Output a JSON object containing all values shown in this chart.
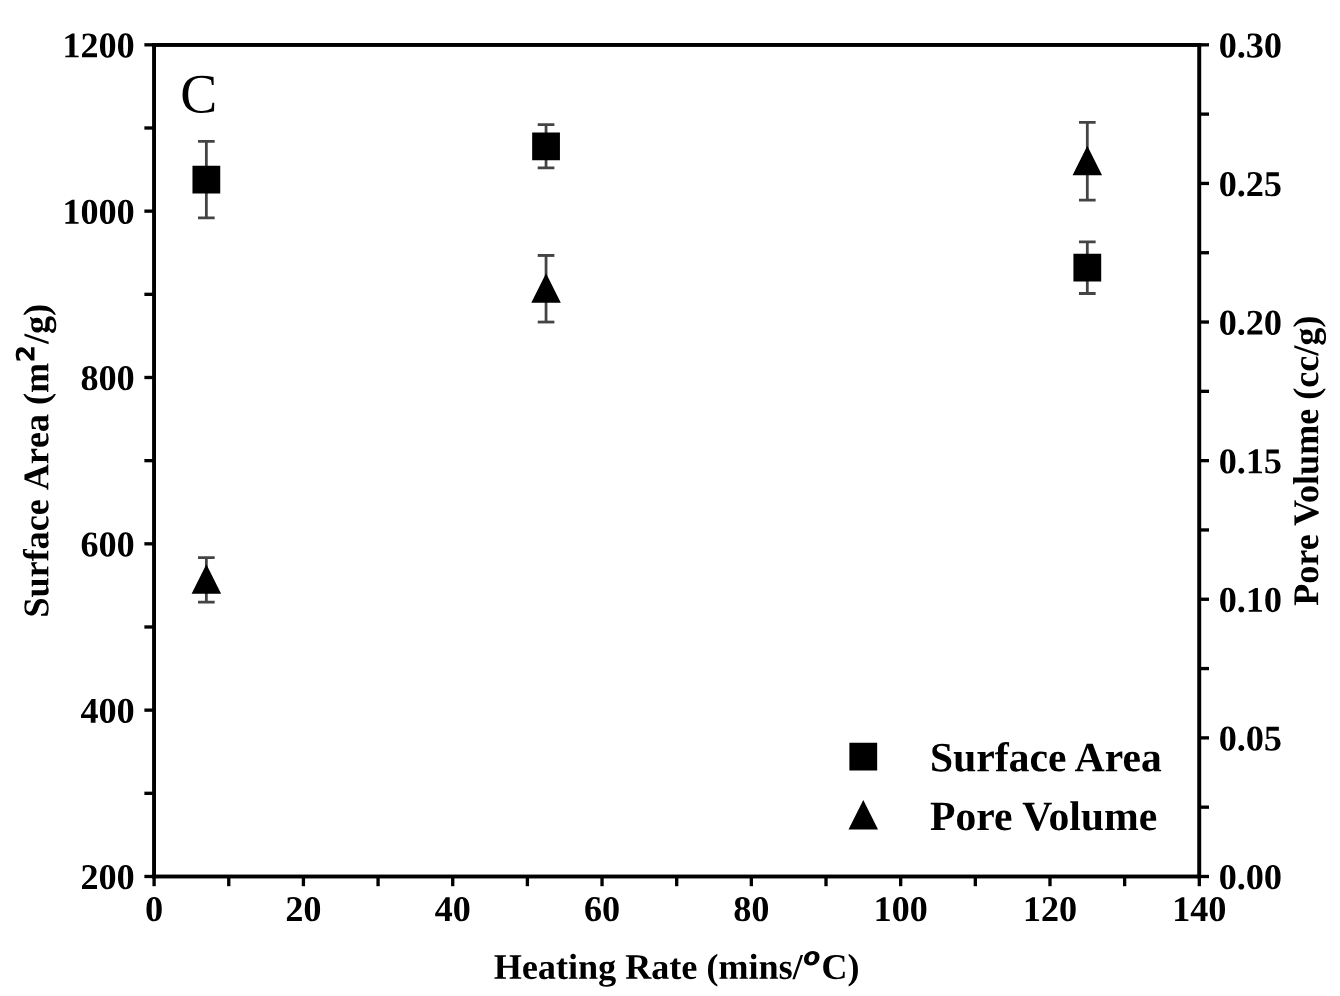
{
  "chart_data": {
    "type": "scatter",
    "xlabel": "Heating Rate (mins/$^{o}$C)",
    "ylabel": "Surface Area (m$^{2}$/g)",
    "y2label": "Pore Volume (cc/g)",
    "annotations": [
      "C"
    ],
    "x": [
      7,
      52.5,
      125
    ],
    "series": [
      {
        "name": "Surface Area",
        "color": "#000000",
        "marker": "square",
        "values": [
          1038,
          1078,
          932
        ],
        "errors": [
          46,
          26,
          31
        ]
      },
      {
        "name": "Pore Volume",
        "color": "#000000",
        "marker": "triangle",
        "axis": "y2",
        "values": [
          0.107,
          0.212,
          0.258
        ],
        "errors": [
          0.008,
          0.012,
          0.014
        ]
      }
    ],
    "xlim": [
      0,
      140
    ],
    "xticks": [
      0,
      {
        "value": 10,
        "label": null
      },
      20,
      {
        "value": 30,
        "label": null
      },
      40,
      {
        "value": 50,
        "label": null
      },
      60,
      {
        "value": 70,
        "label": null
      },
      80,
      {
        "value": 90,
        "label": null
      },
      100,
      {
        "value": 110,
        "label": null
      },
      120,
      {
        "value": 130,
        "label": null
      },
      140
    ],
    "ylim": [
      200,
      1200
    ],
    "yticks": [
      200,
      {
        "value": 300,
        "label": null
      },
      400,
      {
        "value": 500,
        "label": null
      },
      600,
      {
        "value": 700,
        "label": null
      },
      800,
      {
        "value": 900,
        "label": null
      },
      1000,
      {
        "value": 1100,
        "label": null
      },
      1200
    ],
    "y2lim": [
      0,
      0.3
    ],
    "y2ticks": [
      {
        "value": 0,
        "label": "0.00"
      },
      {
        "value": 0.025,
        "label": null
      },
      {
        "value": 0.05,
        "label": "0.05"
      },
      {
        "value": 0.075,
        "label": null
      },
      {
        "value": 0.1,
        "label": "0.10"
      },
      {
        "value": 0.125,
        "label": null
      },
      {
        "value": 0.15,
        "label": "0.15"
      },
      {
        "value": 0.175,
        "label": null
      },
      {
        "value": 0.2,
        "label": "0.20"
      },
      {
        "value": 0.225,
        "label": null
      },
      {
        "value": 0.25,
        "label": "0.25"
      },
      {
        "value": 0.275,
        "label": null
      },
      {
        "value": 0.3,
        "label": "0.30"
      }
    ],
    "grid": false,
    "legend": "bottom right"
  }
}
